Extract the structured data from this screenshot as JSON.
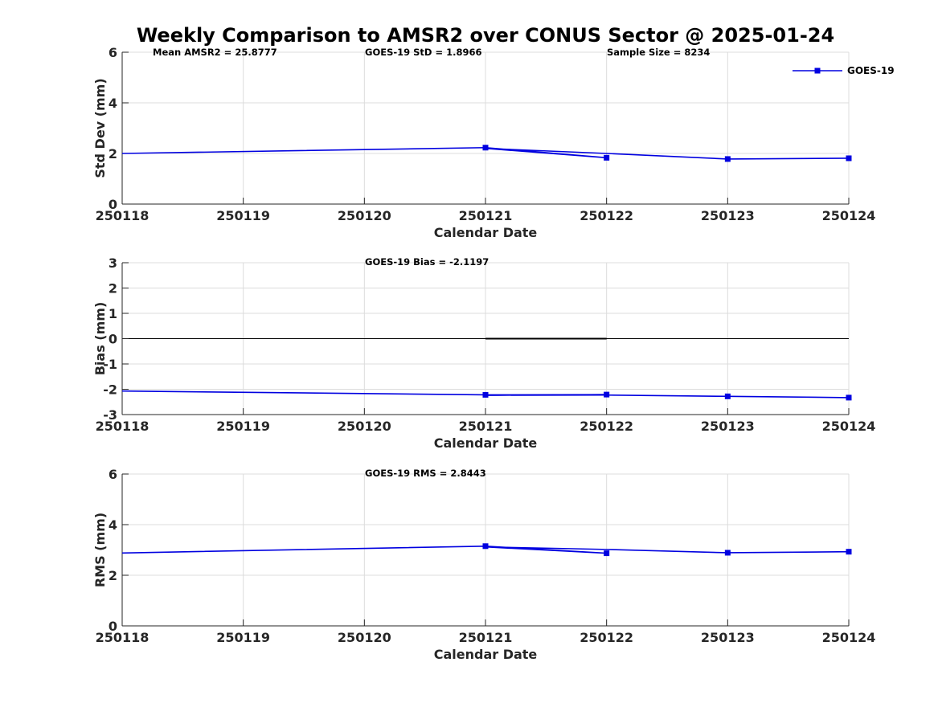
{
  "title": "Weekly Comparison to AMSR2 over CONUS Sector @ 2025-01-24",
  "colors": {
    "series": "#0000e0",
    "grid": "#dcdcdc",
    "axis": "#262626",
    "zero_line": "#000000"
  },
  "legend": {
    "label": "GOES-19",
    "placement": "top-right"
  },
  "chart_data": [
    {
      "type": "line",
      "xlabel": "Calendar Date",
      "ylabel": "Std Dev (mm)",
      "ylim": [
        0,
        6
      ],
      "yticks": [
        "0",
        "2",
        "4",
        "6"
      ],
      "categories": [
        "250118",
        "250119",
        "250120",
        "250121",
        "250122",
        "250123",
        "250124"
      ],
      "annotations": [
        "Mean AMSR2 = 25.8777",
        "GOES-19 StD = 1.8966",
        "Sample Size = 8234"
      ],
      "grid": true,
      "series": [
        {
          "name": "GOES-19",
          "x": [
            0,
            3,
            4,
            3,
            4,
            5,
            6
          ],
          "values": [
            2.0,
            2.23,
            1.83,
            2.2,
            2.0,
            1.78,
            1.81
          ],
          "markers": [
            false,
            true,
            true,
            false,
            false,
            true,
            true
          ]
        }
      ]
    },
    {
      "type": "line",
      "xlabel": "Calendar Date",
      "ylabel": "Bias (mm)",
      "ylim": [
        -3,
        3
      ],
      "yticks": [
        "-3",
        "-2",
        "-1",
        "0",
        "1",
        "2",
        "3"
      ],
      "categories": [
        "250118",
        "250119",
        "250120",
        "250121",
        "250122",
        "250123",
        "250124"
      ],
      "annotations": [
        "GOES-19 Bias  = -2.1197"
      ],
      "grid": true,
      "zero_line": true,
      "series": [
        {
          "name": "GOES-19",
          "x": [
            0,
            3,
            4,
            3,
            4,
            5,
            6
          ],
          "values": [
            -2.07,
            -2.22,
            -2.21,
            -2.24,
            -2.23,
            -2.28,
            -2.33
          ],
          "markers": [
            false,
            true,
            true,
            false,
            false,
            true,
            true
          ]
        }
      ]
    },
    {
      "type": "line",
      "xlabel": "Calendar Date",
      "ylabel": "RMS (mm)",
      "ylim": [
        0,
        6
      ],
      "yticks": [
        "0",
        "2",
        "4",
        "6"
      ],
      "categories": [
        "250118",
        "250119",
        "250120",
        "250121",
        "250122",
        "250123",
        "250124"
      ],
      "annotations": [
        "GOES-19 RMS = 2.8443"
      ],
      "grid": true,
      "series": [
        {
          "name": "GOES-19",
          "x": [
            0,
            3,
            4,
            3,
            4,
            5,
            6
          ],
          "values": [
            2.88,
            3.15,
            2.87,
            3.12,
            3.02,
            2.89,
            2.93
          ],
          "markers": [
            false,
            true,
            true,
            false,
            false,
            true,
            true
          ]
        }
      ]
    }
  ]
}
